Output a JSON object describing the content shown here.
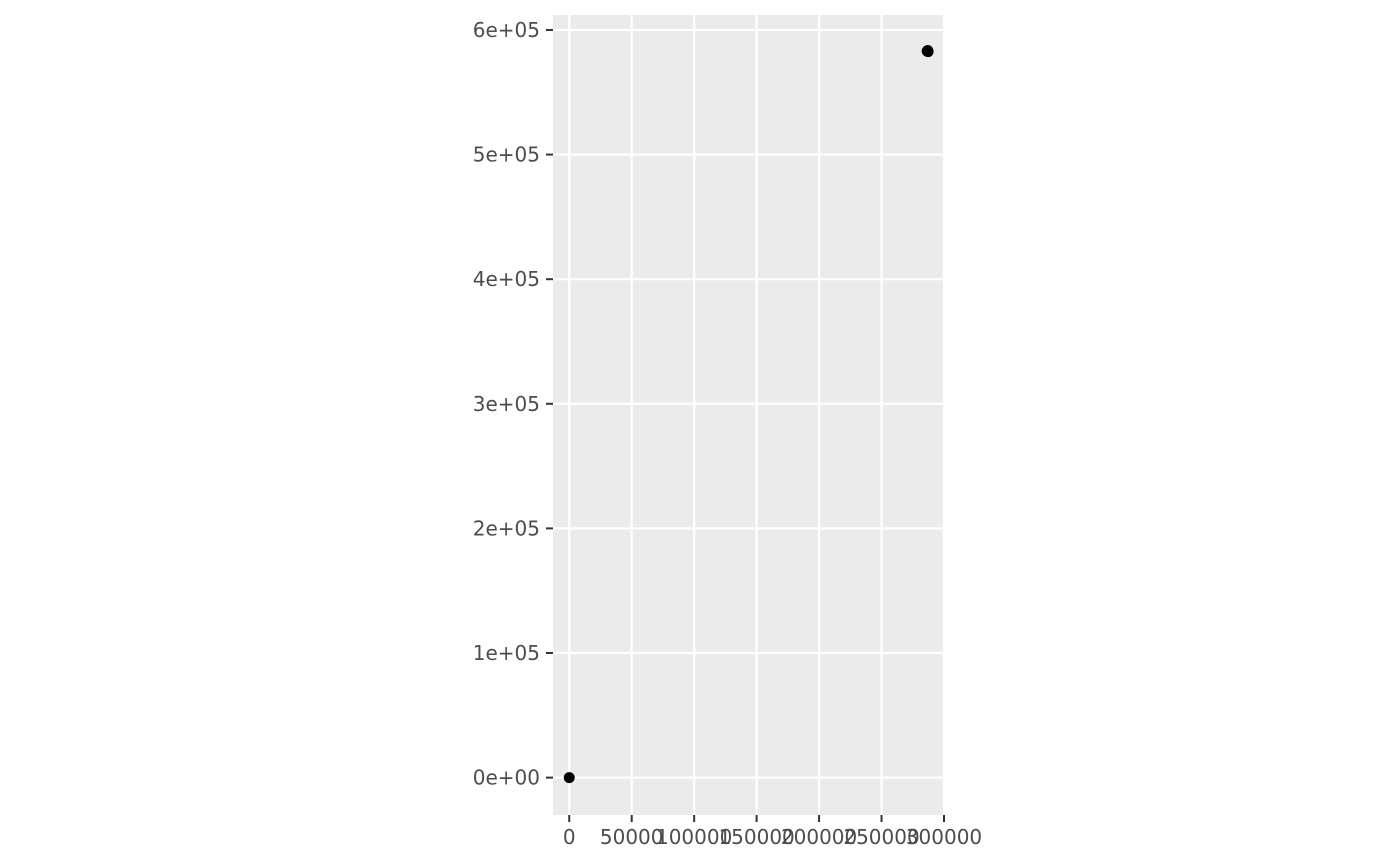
{
  "chart_data": {
    "type": "scatter",
    "title": "",
    "xlabel": "",
    "ylabel": "",
    "xlim": [
      -13000,
      300000
    ],
    "ylim": [
      -30000,
      612000
    ],
    "x_ticks": [
      {
        "value": 0,
        "label": "0"
      },
      {
        "value": 50000,
        "label": "50000"
      },
      {
        "value": 100000,
        "label": "100000"
      },
      {
        "value": 150000,
        "label": "150000"
      },
      {
        "value": 200000,
        "label": "200000"
      },
      {
        "value": 250000,
        "label": "250000"
      },
      {
        "value": 300000,
        "label": "300000"
      }
    ],
    "y_ticks": [
      {
        "value": 0,
        "label": "0e+00"
      },
      {
        "value": 100000,
        "label": "1e+05"
      },
      {
        "value": 200000,
        "label": "2e+05"
      },
      {
        "value": 300000,
        "label": "3e+05"
      },
      {
        "value": 400000,
        "label": "4e+05"
      },
      {
        "value": 500000,
        "label": "5e+05"
      },
      {
        "value": 600000,
        "label": "6e+05"
      }
    ],
    "points": [
      {
        "x": 0,
        "y": 0
      },
      {
        "x": 286500,
        "y": 583000
      },
      {
        "x": 287000,
        "y": 583500
      },
      {
        "x": 287300,
        "y": 582600
      }
    ],
    "grid": true,
    "colors": {
      "panel": "#ebebeb",
      "grid": "#ffffff",
      "point": "#000000",
      "tick": "#333333"
    }
  }
}
